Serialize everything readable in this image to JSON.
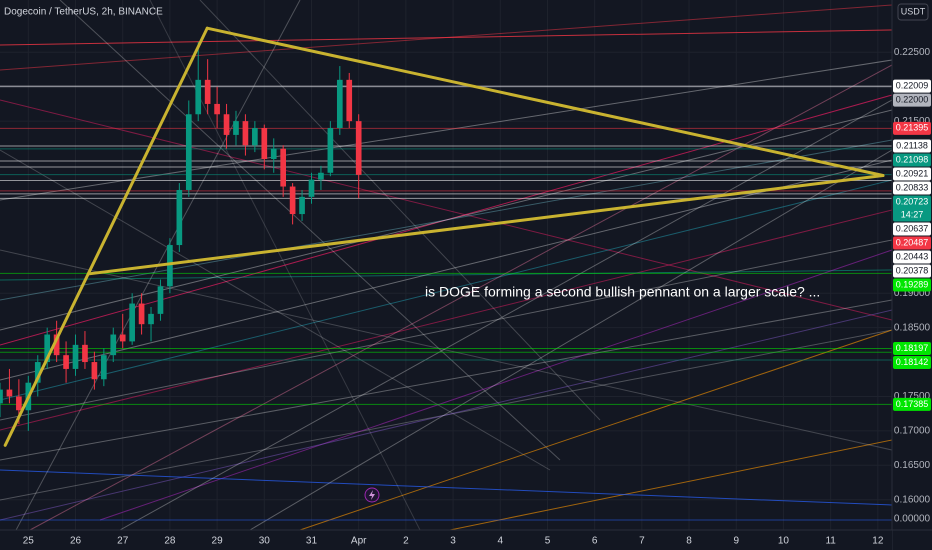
{
  "chart_data": {
    "type": "candlestick",
    "title": "Dogecoin / TetherUS, 2h, BINANCE",
    "currency": "USDT",
    "annotation": "is DOGE forming a second bullish pennant on a larger scale? ...",
    "scale_bottom_label": "0.00000",
    "up_color": "#089981",
    "down_color": "#f23645",
    "grid": true,
    "xlim": [
      24.4,
      43.3
    ],
    "ylim": [
      0.1556,
      0.2326
    ],
    "xticks": [
      {
        "value": 25,
        "label": "25"
      },
      {
        "value": 26,
        "label": "26"
      },
      {
        "value": 27,
        "label": "27"
      },
      {
        "value": 28,
        "label": "28"
      },
      {
        "value": 29,
        "label": "29"
      },
      {
        "value": 30,
        "label": "30"
      },
      {
        "value": 31,
        "label": "31"
      },
      {
        "value": 32,
        "label": "Apr"
      },
      {
        "value": 33,
        "label": "2"
      },
      {
        "value": 34,
        "label": "3"
      },
      {
        "value": 35,
        "label": "4"
      },
      {
        "value": 36,
        "label": "5"
      },
      {
        "value": 37,
        "label": "6"
      },
      {
        "value": 38,
        "label": "7"
      },
      {
        "value": 39,
        "label": "8"
      },
      {
        "value": 40,
        "label": "9"
      },
      {
        "value": 41,
        "label": "10"
      },
      {
        "value": 42,
        "label": "11"
      },
      {
        "value": 43,
        "label": "12"
      }
    ],
    "yticks": [
      {
        "value": 0.225,
        "label": "0.22500"
      },
      {
        "value": 0.215,
        "label": "0.21500"
      },
      {
        "value": 0.19,
        "label": "0.19000"
      },
      {
        "value": 0.185,
        "label": "0.18500"
      },
      {
        "value": 0.175,
        "label": "0.17500"
      },
      {
        "value": 0.17,
        "label": "0.17000"
      },
      {
        "value": 0.165,
        "label": "0.16500"
      },
      {
        "value": 0.16,
        "label": "0.16000"
      }
    ],
    "x": [
      24.4,
      24.6,
      24.8,
      25.0,
      25.2,
      25.4,
      25.6,
      25.8,
      26.0,
      26.2,
      26.4,
      26.6,
      26.8,
      27.0,
      27.2,
      27.4,
      27.6,
      27.8,
      28.0,
      28.2,
      28.4,
      28.6,
      28.8,
      29.0,
      29.2,
      29.4,
      29.6,
      29.8,
      30.0,
      30.2,
      30.4,
      30.6,
      30.8,
      31.0,
      31.2,
      31.4,
      31.6,
      31.8,
      32.0
    ],
    "open": [
      0.174,
      0.176,
      0.175,
      0.173,
      0.177,
      0.18,
      0.184,
      0.181,
      0.179,
      0.1825,
      0.18,
      0.1775,
      0.181,
      0.184,
      0.183,
      0.1885,
      0.1855,
      0.187,
      0.191,
      0.197,
      0.205,
      0.216,
      0.221,
      0.2175,
      0.216,
      0.213,
      0.215,
      0.2115,
      0.214,
      0.2095,
      0.211,
      0.2055,
      0.2015,
      0.204,
      0.2065,
      0.2075,
      0.214,
      0.221,
      0.215
    ],
    "high": [
      0.177,
      0.179,
      0.1775,
      0.178,
      0.181,
      0.185,
      0.186,
      0.183,
      0.184,
      0.1845,
      0.1815,
      0.182,
      0.185,
      0.187,
      0.19,
      0.19,
      0.188,
      0.192,
      0.198,
      0.206,
      0.218,
      0.2265,
      0.224,
      0.22,
      0.2175,
      0.2165,
      0.216,
      0.215,
      0.2145,
      0.2125,
      0.2115,
      0.206,
      0.205,
      0.2075,
      0.2085,
      0.215,
      0.223,
      0.222,
      0.216
    ],
    "low": [
      0.172,
      0.174,
      0.171,
      0.17,
      0.175,
      0.179,
      0.18,
      0.177,
      0.178,
      0.179,
      0.176,
      0.1765,
      0.18,
      0.182,
      0.1825,
      0.184,
      0.183,
      0.186,
      0.19,
      0.196,
      0.204,
      0.215,
      0.216,
      0.214,
      0.211,
      0.2115,
      0.21,
      0.2105,
      0.208,
      0.2075,
      0.204,
      0.2,
      0.2005,
      0.203,
      0.205,
      0.207,
      0.213,
      0.214,
      0.2038
    ],
    "close": [
      0.176,
      0.175,
      0.173,
      0.177,
      0.18,
      0.184,
      0.181,
      0.179,
      0.1825,
      0.18,
      0.1775,
      0.181,
      0.184,
      0.183,
      0.1885,
      0.1855,
      0.187,
      0.191,
      0.197,
      0.205,
      0.216,
      0.221,
      0.2175,
      0.216,
      0.213,
      0.215,
      0.2115,
      0.214,
      0.2095,
      0.211,
      0.2055,
      0.2015,
      0.204,
      0.2065,
      0.2075,
      0.214,
      0.221,
      0.215,
      0.2072
    ],
    "trendline_color": "#c9b330",
    "trendlines": [
      {
        "from": [
          24.51,
          0.1679
        ],
        "to": [
          28.79,
          0.2285
        ]
      },
      {
        "from": [
          28.79,
          0.2285
        ],
        "to": [
          43.11,
          0.2071
        ]
      },
      {
        "from": [
          26.27,
          0.1928
        ],
        "to": [
          43.11,
          0.2071
        ]
      }
    ],
    "price_lines": [
      {
        "value": 0.22009,
        "color": "#ffffff"
      },
      {
        "value": 0.22,
        "label": "0.22000",
        "color": "#b2b5be"
      },
      {
        "value": 0.21395,
        "color": "#f23645"
      },
      {
        "value": 0.21138,
        "color": "#ffffff"
      },
      {
        "value": 0.21098,
        "color": "#089981"
      },
      {
        "value": 0.20921,
        "color": "#ffffff"
      },
      {
        "value": 0.20833,
        "color": "#ffffff"
      },
      {
        "value": 0.20723,
        "color": "#089981",
        "countdown": "14:27"
      },
      {
        "value": 0.20637,
        "color": "#ffffff"
      },
      {
        "value": 0.20487,
        "color": "#f23645"
      },
      {
        "value": 0.20443,
        "color": "#ffffff"
      },
      {
        "value": 0.20378,
        "color": "#ffffff"
      },
      {
        "value": 0.19289,
        "color": "#00e600"
      },
      {
        "value": 0.18197,
        "color": "#00e600"
      },
      {
        "value": 0.18142,
        "color": "#00e600"
      },
      {
        "value": 0.17385,
        "color": "#00e600"
      }
    ]
  }
}
